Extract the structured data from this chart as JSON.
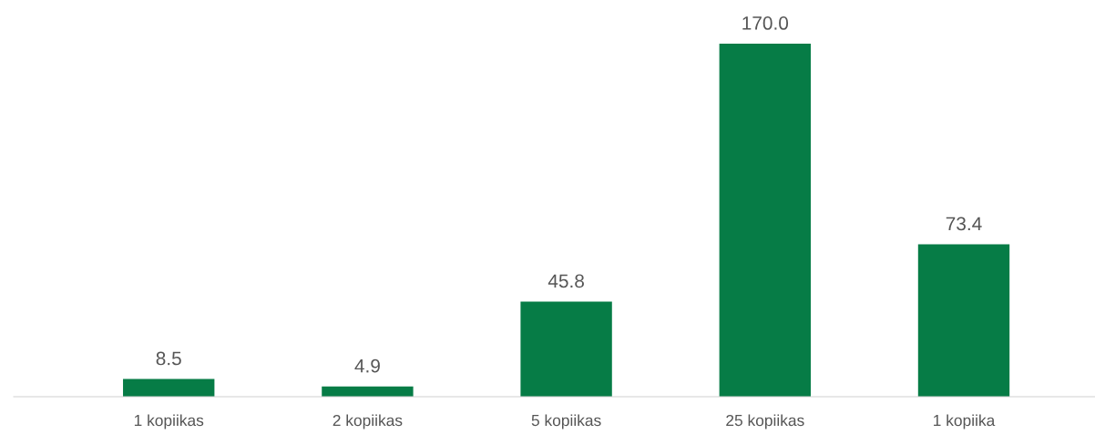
{
  "chart_data": {
    "type": "bar",
    "categories": [
      "1 kopiikas",
      "2 kopiikas",
      "5 kopiikas",
      "25 kopiikas",
      "1 kopiika"
    ],
    "values": [
      8.5,
      4.9,
      45.8,
      170.0,
      73.4
    ],
    "color": "#067c46",
    "value_labels": [
      "8.5",
      "4.9",
      "45.8",
      "170.0",
      "73.4"
    ],
    "grid": false,
    "legend": false
  }
}
